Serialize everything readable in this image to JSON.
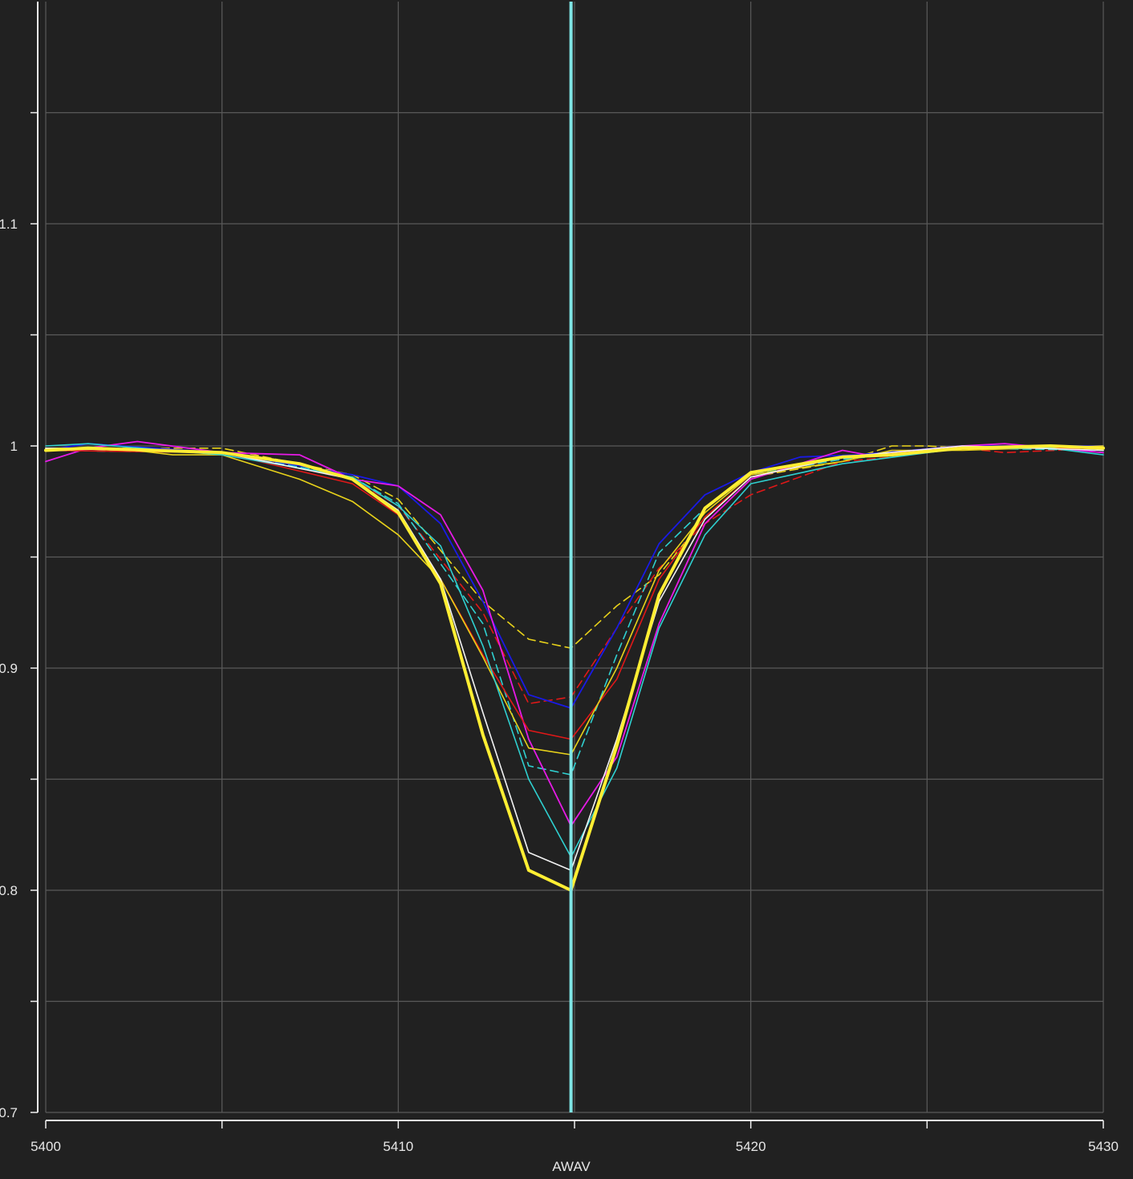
{
  "chart_data": {
    "type": "line",
    "title": "",
    "xlabel": "AWAV",
    "ylabel": "",
    "xlim": [
      5400,
      5430
    ],
    "ylim": [
      0.7,
      1.2
    ],
    "grid": true,
    "legend": "none",
    "background": "#212121",
    "x_ticks": [
      5400,
      5410,
      5420,
      5430
    ],
    "x_tick_labels": [
      "5400",
      "5410",
      "5420",
      "5430"
    ],
    "x_minor_ticks": [
      5405,
      5415,
      5425
    ],
    "y_ticks": [
      0.8,
      0.9,
      1.0,
      1.1
    ],
    "y_tick_labels": [
      "0.8",
      "0.9",
      "1",
      "1.1"
    ],
    "y_minor_ticks": [
      0.75,
      0.85,
      0.95,
      1.05,
      1.15
    ],
    "vertical_marker": {
      "x": 5414.9,
      "color": "#7fe5e5"
    },
    "series": [
      {
        "color": "#e8d21a",
        "dash": true,
        "width": 1.6,
        "points": [
          [
            5400,
            0.999
          ],
          [
            5405,
            0.999
          ],
          [
            5408.7,
            0.987
          ],
          [
            5410,
            0.976
          ],
          [
            5412.4,
            0.93
          ],
          [
            5413.7,
            0.913
          ],
          [
            5414.9,
            0.909
          ],
          [
            5416.2,
            0.928
          ],
          [
            5417.4,
            0.942
          ],
          [
            5418.7,
            0.968
          ],
          [
            5420,
            0.986
          ],
          [
            5422.6,
            0.993
          ],
          [
            5424,
            1.0
          ],
          [
            5425,
            1.0
          ],
          [
            5426,
            0.999
          ],
          [
            5430,
            1.0
          ]
        ]
      },
      {
        "color": "#e01818",
        "dash": true,
        "width": 1.6,
        "points": [
          [
            5400,
            0.998
          ],
          [
            5405,
            0.997
          ],
          [
            5408.7,
            0.985
          ],
          [
            5410,
            0.973
          ],
          [
            5412.4,
            0.925
          ],
          [
            5413.7,
            0.884
          ],
          [
            5414.9,
            0.887
          ],
          [
            5416.2,
            0.918
          ],
          [
            5417.4,
            0.945
          ],
          [
            5418.7,
            0.965
          ],
          [
            5420,
            0.978
          ],
          [
            5422.6,
            0.993
          ],
          [
            5424,
            0.995
          ],
          [
            5426,
            0.999
          ],
          [
            5427.2,
            0.997
          ],
          [
            5430,
            0.999
          ]
        ]
      },
      {
        "color": "#2fd0d0",
        "dash": true,
        "width": 1.6,
        "points": [
          [
            5400,
            0.998
          ],
          [
            5405,
            0.997
          ],
          [
            5408.7,
            0.986
          ],
          [
            5410,
            0.974
          ],
          [
            5412.4,
            0.92
          ],
          [
            5413.7,
            0.856
          ],
          [
            5414.9,
            0.852
          ],
          [
            5416.2,
            0.906
          ],
          [
            5417.4,
            0.952
          ],
          [
            5418.7,
            0.972
          ],
          [
            5420,
            0.987
          ],
          [
            5422.6,
            0.994
          ],
          [
            5426,
            0.999
          ],
          [
            5430,
            0.998
          ]
        ]
      },
      {
        "color": "#1a1ae6",
        "dash": false,
        "width": 1.8,
        "points": [
          [
            5400,
            0.998
          ],
          [
            5401.2,
            1.001
          ],
          [
            5405,
            0.997
          ],
          [
            5408.7,
            0.987
          ],
          [
            5410,
            0.982
          ],
          [
            5411.2,
            0.965
          ],
          [
            5412.4,
            0.93
          ],
          [
            5413.7,
            0.888
          ],
          [
            5414.9,
            0.882
          ],
          [
            5416.2,
            0.918
          ],
          [
            5417.4,
            0.956
          ],
          [
            5418.7,
            0.978
          ],
          [
            5420,
            0.988
          ],
          [
            5421.4,
            0.995
          ],
          [
            5423,
            0.996
          ],
          [
            5426,
            1.0
          ],
          [
            5430,
            1.0
          ]
        ]
      },
      {
        "color": "#e61ae6",
        "dash": false,
        "width": 1.8,
        "points": [
          [
            5400,
            0.993
          ],
          [
            5401.2,
            0.999
          ],
          [
            5402.6,
            1.002
          ],
          [
            5405,
            0.997
          ],
          [
            5407.2,
            0.996
          ],
          [
            5408.7,
            0.985
          ],
          [
            5410,
            0.982
          ],
          [
            5411.2,
            0.969
          ],
          [
            5412.4,
            0.935
          ],
          [
            5413.7,
            0.868
          ],
          [
            5414.9,
            0.829
          ],
          [
            5416.2,
            0.86
          ],
          [
            5417.4,
            0.92
          ],
          [
            5418.7,
            0.965
          ],
          [
            5420,
            0.985
          ],
          [
            5422.6,
            0.998
          ],
          [
            5423.3,
            0.996
          ],
          [
            5426,
            1.0
          ],
          [
            5427.2,
            1.001
          ],
          [
            5430,
            0.997
          ]
        ]
      },
      {
        "color": "#e01818",
        "dash": false,
        "width": 1.6,
        "points": [
          [
            5400,
            0.998
          ],
          [
            5405,
            0.997
          ],
          [
            5408.7,
            0.983
          ],
          [
            5410,
            0.969
          ],
          [
            5411.2,
            0.94
          ],
          [
            5412.4,
            0.906
          ],
          [
            5413.7,
            0.872
          ],
          [
            5414.9,
            0.868
          ],
          [
            5416.2,
            0.895
          ],
          [
            5417.4,
            0.94
          ],
          [
            5418.7,
            0.968
          ],
          [
            5420,
            0.986
          ],
          [
            5422.6,
            0.995
          ],
          [
            5426,
            0.999
          ],
          [
            5430,
            0.999
          ]
        ]
      },
      {
        "color": "#e8d21a",
        "dash": false,
        "width": 1.6,
        "points": [
          [
            5400,
            0.999
          ],
          [
            5402,
            0.999
          ],
          [
            5403.6,
            0.996
          ],
          [
            5405,
            0.996
          ],
          [
            5407.2,
            0.985
          ],
          [
            5408.7,
            0.975
          ],
          [
            5410,
            0.96
          ],
          [
            5411.2,
            0.94
          ],
          [
            5412.4,
            0.905
          ],
          [
            5413.7,
            0.864
          ],
          [
            5414.9,
            0.861
          ],
          [
            5416.2,
            0.9
          ],
          [
            5417.4,
            0.944
          ],
          [
            5418.7,
            0.97
          ],
          [
            5420,
            0.987
          ],
          [
            5422.6,
            0.993
          ],
          [
            5424,
            0.998
          ],
          [
            5426,
            0.998
          ],
          [
            5430,
            1.0
          ]
        ]
      },
      {
        "color": "#2fd0d0",
        "dash": false,
        "width": 1.6,
        "points": [
          [
            5400,
            1.0
          ],
          [
            5401.2,
            1.001
          ],
          [
            5405,
            0.996
          ],
          [
            5408.7,
            0.986
          ],
          [
            5410,
            0.973
          ],
          [
            5411.2,
            0.955
          ],
          [
            5412.4,
            0.91
          ],
          [
            5413.7,
            0.85
          ],
          [
            5414.9,
            0.815
          ],
          [
            5416.2,
            0.855
          ],
          [
            5417.4,
            0.918
          ],
          [
            5418.7,
            0.96
          ],
          [
            5420,
            0.983
          ],
          [
            5422.6,
            0.992
          ],
          [
            5426,
            0.999
          ],
          [
            5428.5,
            0.999
          ],
          [
            5430,
            0.996
          ]
        ]
      },
      {
        "color": "#f2f2f2",
        "dash": false,
        "width": 1.6,
        "points": [
          [
            5400,
            0.999
          ],
          [
            5405,
            0.997
          ],
          [
            5408.7,
            0.985
          ],
          [
            5410,
            0.971
          ],
          [
            5411.2,
            0.94
          ],
          [
            5412.4,
            0.88
          ],
          [
            5413.7,
            0.817
          ],
          [
            5414.9,
            0.809
          ],
          [
            5416.2,
            0.868
          ],
          [
            5417.4,
            0.93
          ],
          [
            5418.7,
            0.967
          ],
          [
            5420,
            0.986
          ],
          [
            5422.6,
            0.995
          ],
          [
            5426,
            1.0
          ],
          [
            5430,
            0.998
          ]
        ]
      },
      {
        "color": "#ffee33",
        "dash": false,
        "width": 4,
        "points": [
          [
            5400,
            0.998
          ],
          [
            5401.2,
            0.999
          ],
          [
            5405,
            0.997
          ],
          [
            5407.2,
            0.992
          ],
          [
            5408.7,
            0.985
          ],
          [
            5410,
            0.97
          ],
          [
            5411.2,
            0.938
          ],
          [
            5412.4,
            0.87
          ],
          [
            5413.7,
            0.809
          ],
          [
            5414.9,
            0.8
          ],
          [
            5416.2,
            0.865
          ],
          [
            5417.4,
            0.933
          ],
          [
            5418.7,
            0.972
          ],
          [
            5420,
            0.988
          ],
          [
            5422.6,
            0.995
          ],
          [
            5424,
            0.996
          ],
          [
            5426,
            0.999
          ],
          [
            5428.5,
            1.0
          ],
          [
            5430,
            0.999
          ]
        ]
      }
    ]
  }
}
